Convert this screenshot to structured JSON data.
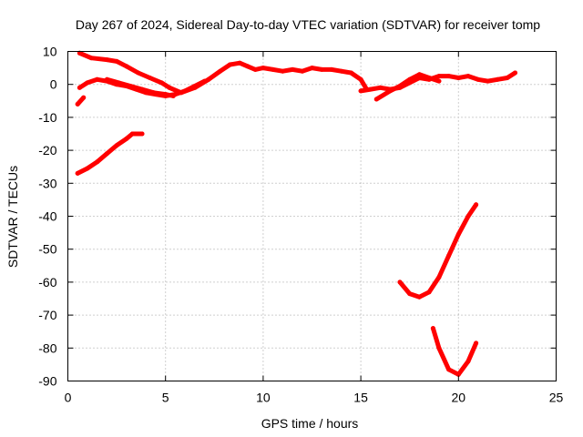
{
  "chart_data": {
    "type": "line",
    "title": "Day 267 of 2024, Sidereal Day-to-day VTEC variation (SDTVAR) for receiver tomp",
    "xlabel": "GPS time / hours",
    "ylabel": "SDTVAR / TECUs",
    "xlim": [
      0,
      25
    ],
    "ylim": [
      -90,
      10
    ],
    "xticks": [
      0,
      5,
      10,
      15,
      20,
      25
    ],
    "yticks": [
      10,
      0,
      -10,
      -20,
      -30,
      -40,
      -50,
      -60,
      -70,
      -80,
      -90
    ],
    "grid": true,
    "legend": "none",
    "color": "#ff0000",
    "series": [
      {
        "x": [
          0.6,
          1.2,
          2.0,
          2.5,
          3.0,
          3.6,
          4.2,
          4.8,
          5.2,
          5.8,
          6.5,
          7.2,
          7.8,
          8.3,
          8.8,
          9.2,
          9.6,
          10.0,
          10.5,
          11.0,
          11.5,
          12.0,
          12.5,
          13.0,
          13.5,
          14.0,
          14.5,
          15.0,
          15.3
        ],
        "y": [
          9.5,
          8.0,
          7.5,
          7.0,
          5.5,
          3.5,
          2.0,
          0.5,
          -1.0,
          -2.5,
          -1.0,
          1.5,
          4.0,
          6.0,
          6.5,
          5.5,
          4.5,
          5.0,
          4.5,
          4.0,
          4.5,
          4.0,
          5.0,
          4.5,
          4.5,
          4.0,
          3.5,
          1.5,
          -1.5
        ]
      },
      {
        "x": [
          2.0,
          2.6,
          3.2,
          3.8,
          4.4,
          5.0,
          5.4
        ],
        "y": [
          1.5,
          0.5,
          -0.5,
          -1.5,
          -2.5,
          -3.0,
          -3.5
        ]
      },
      {
        "x": [
          0.6,
          1.0,
          1.5,
          2.0,
          2.5,
          3.0,
          3.5,
          4.0,
          4.5,
          5.0,
          5.5,
          6.0,
          6.5,
          7.0
        ],
        "y": [
          -1.0,
          0.5,
          1.5,
          1.0,
          0.0,
          -0.5,
          -1.5,
          -2.5,
          -3.0,
          -3.5,
          -3.0,
          -2.0,
          -0.5,
          1.0
        ]
      },
      {
        "x": [
          0.5,
          0.8
        ],
        "y": [
          -6.0,
          -4.0
        ]
      },
      {
        "x": [
          0.5,
          1.0,
          1.5,
          2.0,
          2.5,
          3.0,
          3.3,
          3.8
        ],
        "y": [
          -27.0,
          -25.5,
          -23.5,
          -21.0,
          -18.5,
          -16.5,
          -15.0,
          -15.0
        ]
      },
      {
        "x": [
          15.0,
          15.5,
          16.0,
          16.5,
          17.0,
          17.5,
          18.0,
          18.5,
          19.0,
          19.5,
          20.0,
          20.5,
          21.0,
          21.5,
          22.0,
          22.5,
          22.9
        ],
        "y": [
          -2.0,
          -1.5,
          -1.0,
          -1.5,
          -1.0,
          0.5,
          2.0,
          1.5,
          2.5,
          2.5,
          2.0,
          2.5,
          1.5,
          1.0,
          1.5,
          2.0,
          3.5
        ]
      },
      {
        "x": [
          15.8,
          16.5,
          17.0,
          17.5,
          18.0,
          18.5,
          19.0
        ],
        "y": [
          -4.5,
          -2.0,
          -0.5,
          1.5,
          3.0,
          2.0,
          1.0
        ]
      },
      {
        "x": [
          17.0,
          17.5,
          18.0,
          18.5,
          19.0,
          19.5,
          20.0,
          20.5,
          20.9
        ],
        "y": [
          -60.0,
          -63.5,
          -64.5,
          -63.0,
          -58.5,
          -52.0,
          -45.5,
          -40.0,
          -36.5
        ]
      },
      {
        "x": [
          18.7,
          19.0,
          19.5,
          20.0,
          20.5,
          20.9
        ],
        "y": [
          -74.0,
          -80.0,
          -86.5,
          -88.0,
          -84.0,
          -78.5
        ]
      }
    ]
  }
}
